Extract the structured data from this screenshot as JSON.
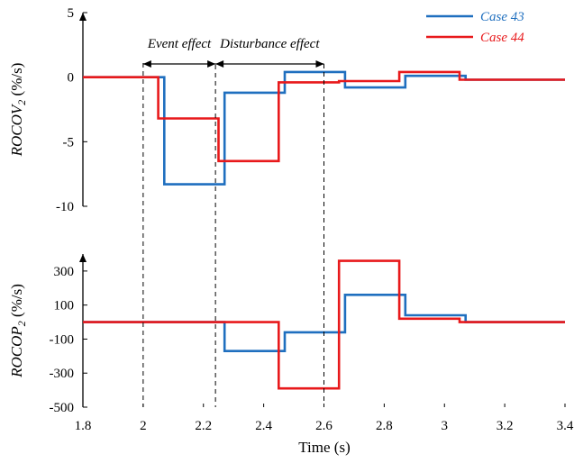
{
  "chart_data": [
    {
      "type": "line",
      "ylabel_main": "ROCOV",
      "ylabel_sub": "2",
      "ylabel_unit": " (%/s)",
      "ylim": [
        -10,
        5
      ],
      "yticks": [
        5,
        0,
        -5,
        -10
      ],
      "xlim": [
        1.8,
        3.4
      ],
      "annotations": {
        "event_effect": "Event effect",
        "disturbance_effect": "Disturbance effect",
        "vlines": [
          2.0,
          2.24,
          2.6
        ]
      },
      "series": [
        {
          "name": "Case 43",
          "color": "#1f6fbf",
          "x": [
            1.8,
            2.07,
            2.07,
            2.27,
            2.27,
            2.47,
            2.47,
            2.67,
            2.67,
            2.87,
            2.87,
            3.07,
            3.07,
            3.4
          ],
          "y": [
            0,
            0,
            -8.3,
            -8.3,
            -1.2,
            -1.2,
            0.4,
            0.4,
            -0.8,
            -0.8,
            0.1,
            0.1,
            -0.2,
            -0.2
          ]
        },
        {
          "name": "Case 44",
          "color": "#e8191b",
          "x": [
            1.8,
            2.05,
            2.05,
            2.25,
            2.25,
            2.45,
            2.45,
            2.65,
            2.65,
            2.85,
            2.85,
            3.05,
            3.05,
            3.4
          ],
          "y": [
            0,
            0,
            -3.2,
            -3.2,
            -6.5,
            -6.5,
            -0.4,
            -0.4,
            -0.3,
            -0.3,
            0.4,
            0.4,
            -0.2,
            -0.2
          ]
        }
      ]
    },
    {
      "type": "line",
      "ylabel_main": "ROCOP",
      "ylabel_sub": "2",
      "ylabel_unit": " (%/s)",
      "ylim": [
        -500,
        400
      ],
      "yticks": [
        300,
        100,
        -100,
        -300,
        -500
      ],
      "xlim": [
        1.8,
        3.4
      ],
      "xticks": [
        1.8,
        2,
        2.2,
        2.4,
        2.6,
        2.8,
        3,
        3.2,
        3.4
      ],
      "xtick_labels": [
        "1.8",
        "2",
        "2.2",
        "2.4",
        "2.6",
        "2.8",
        "3",
        "3.2",
        "3.4"
      ],
      "xlabel": "Time (s)",
      "series": [
        {
          "name": "Case 43",
          "color": "#1f6fbf",
          "x": [
            1.8,
            2.27,
            2.27,
            2.47,
            2.47,
            2.67,
            2.67,
            2.87,
            2.87,
            3.07,
            3.07,
            3.4
          ],
          "y": [
            0,
            0,
            -170,
            -170,
            -60,
            -60,
            160,
            160,
            40,
            40,
            0,
            0
          ]
        },
        {
          "name": "Case 44",
          "color": "#e8191b",
          "x": [
            1.8,
            2.45,
            2.45,
            2.65,
            2.65,
            2.85,
            2.85,
            3.05,
            3.05,
            3.4
          ],
          "y": [
            0,
            0,
            -390,
            -390,
            360,
            360,
            20,
            20,
            0,
            0
          ]
        }
      ]
    }
  ],
  "legend": [
    {
      "label": "Case 43",
      "color": "#1f6fbf"
    },
    {
      "label": "Case 44",
      "color": "#e8191b"
    }
  ]
}
